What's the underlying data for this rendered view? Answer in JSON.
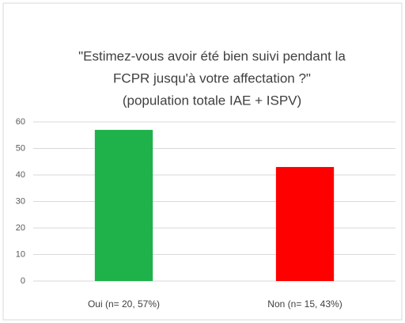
{
  "chart_data": {
    "type": "bar",
    "title": [
      "\"Estimez-vous avoir été bien suivi pendant la",
      "FCPR jusqu'à votre affectation ?\"",
      "(population totale IAE + ISPV)"
    ],
    "categories": [
      "Oui (n= 20, 57%)",
      "Non (n= 15, 43%)"
    ],
    "values": [
      57,
      43
    ],
    "colors": [
      "#1fb24a",
      "#ff0000"
    ],
    "ylim": [
      0,
      60
    ],
    "yticks": [
      0,
      10,
      20,
      30,
      40,
      50,
      60
    ],
    "grid": true
  }
}
